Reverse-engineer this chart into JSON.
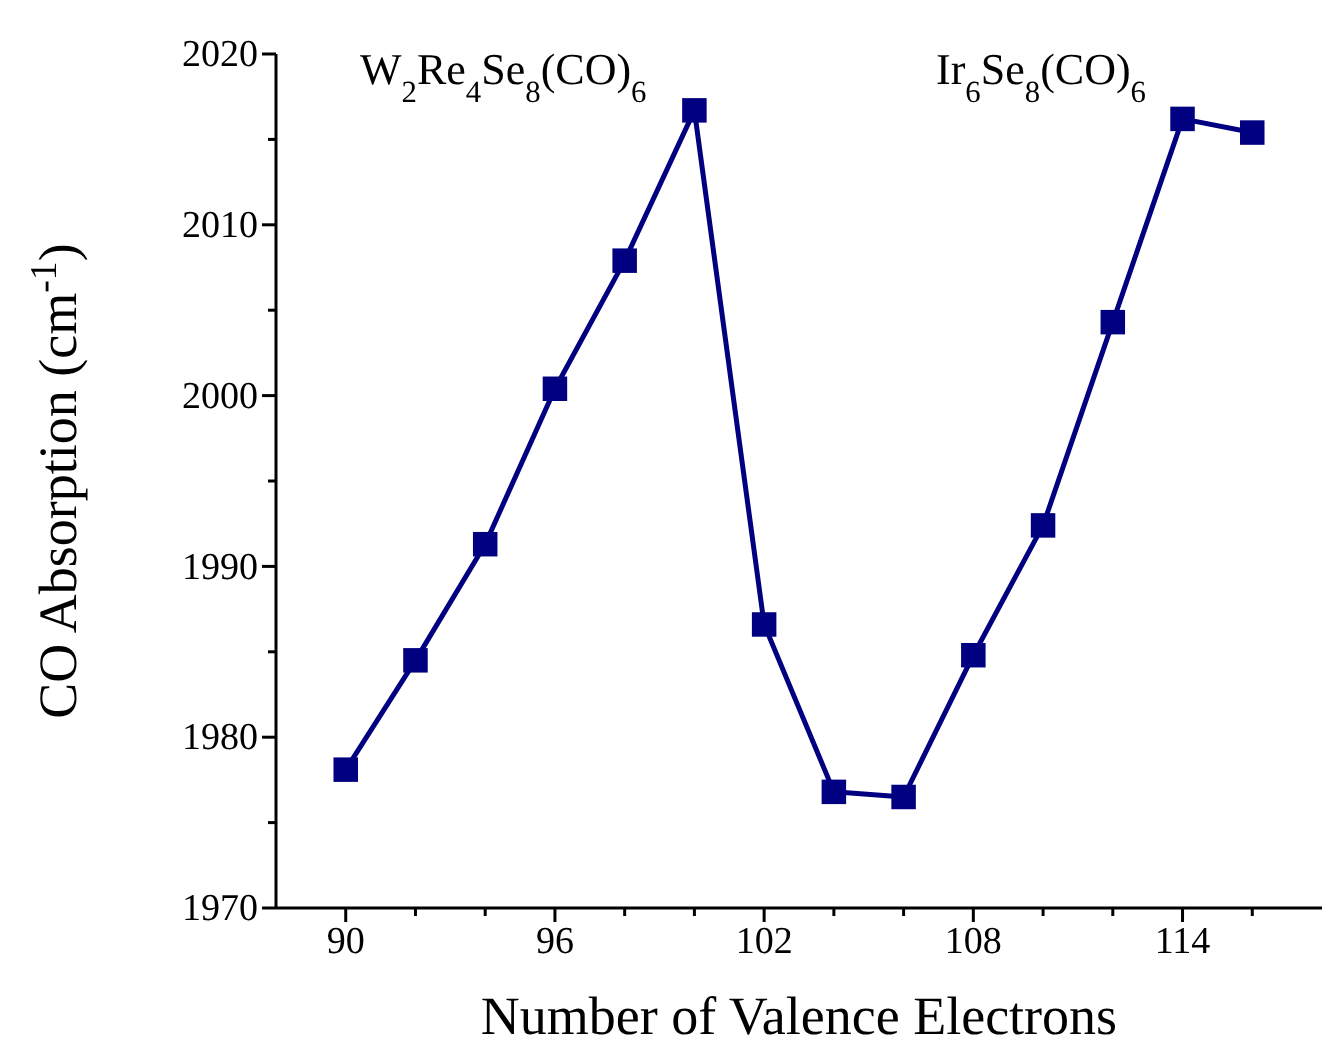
{
  "chart_data": {
    "type": "line",
    "xlabel": "Number of Valence Electrons",
    "ylabel": "CO Absorption (cm$^{-1}$)",
    "annotations": [
      "W$_{2}$Re$_{4}$Se$_{8}$(CO)$_{6}$",
      "Ir$_{6}$Se$_{8}$(CO)$_{6}$"
    ],
    "x": [
      90,
      92,
      94,
      96,
      98,
      100,
      102,
      104,
      106,
      108,
      110,
      112,
      114,
      116
    ],
    "series": [
      {
        "color": "#000080",
        "values": [
          1978.1,
          1984.5,
          1991.3,
          2000.4,
          2007.9,
          2016.7,
          1986.6,
          1976.8,
          1976.5,
          1984.8,
          1992.4,
          2004.3,
          2016.2,
          2015.4
        ]
      }
    ],
    "xlim": [
      88,
      118
    ],
    "xticks": [
      90,
      {
        "value": 92,
        "label": null
      },
      {
        "value": 94,
        "label": null
      },
      96,
      {
        "value": 98,
        "label": null
      },
      {
        "value": 100,
        "label": null
      },
      102,
      {
        "value": 104,
        "label": null
      },
      {
        "value": 106,
        "label": null
      },
      108,
      {
        "value": 110,
        "label": null
      },
      {
        "value": 112,
        "label": null
      },
      114,
      {
        "value": 116,
        "label": null
      }
    ],
    "ylim": [
      1970,
      2020
    ],
    "yticks": [
      1970,
      {
        "value": 1975,
        "label": null
      },
      1980,
      {
        "value": 1985,
        "label": null
      },
      1990,
      {
        "value": 1995,
        "label": null
      },
      2000,
      {
        "value": 2005,
        "label": null
      },
      2010,
      {
        "value": 2015,
        "label": null
      },
      2020
    ],
    "marker": "square",
    "line_style": "solid",
    "grid": false
  }
}
